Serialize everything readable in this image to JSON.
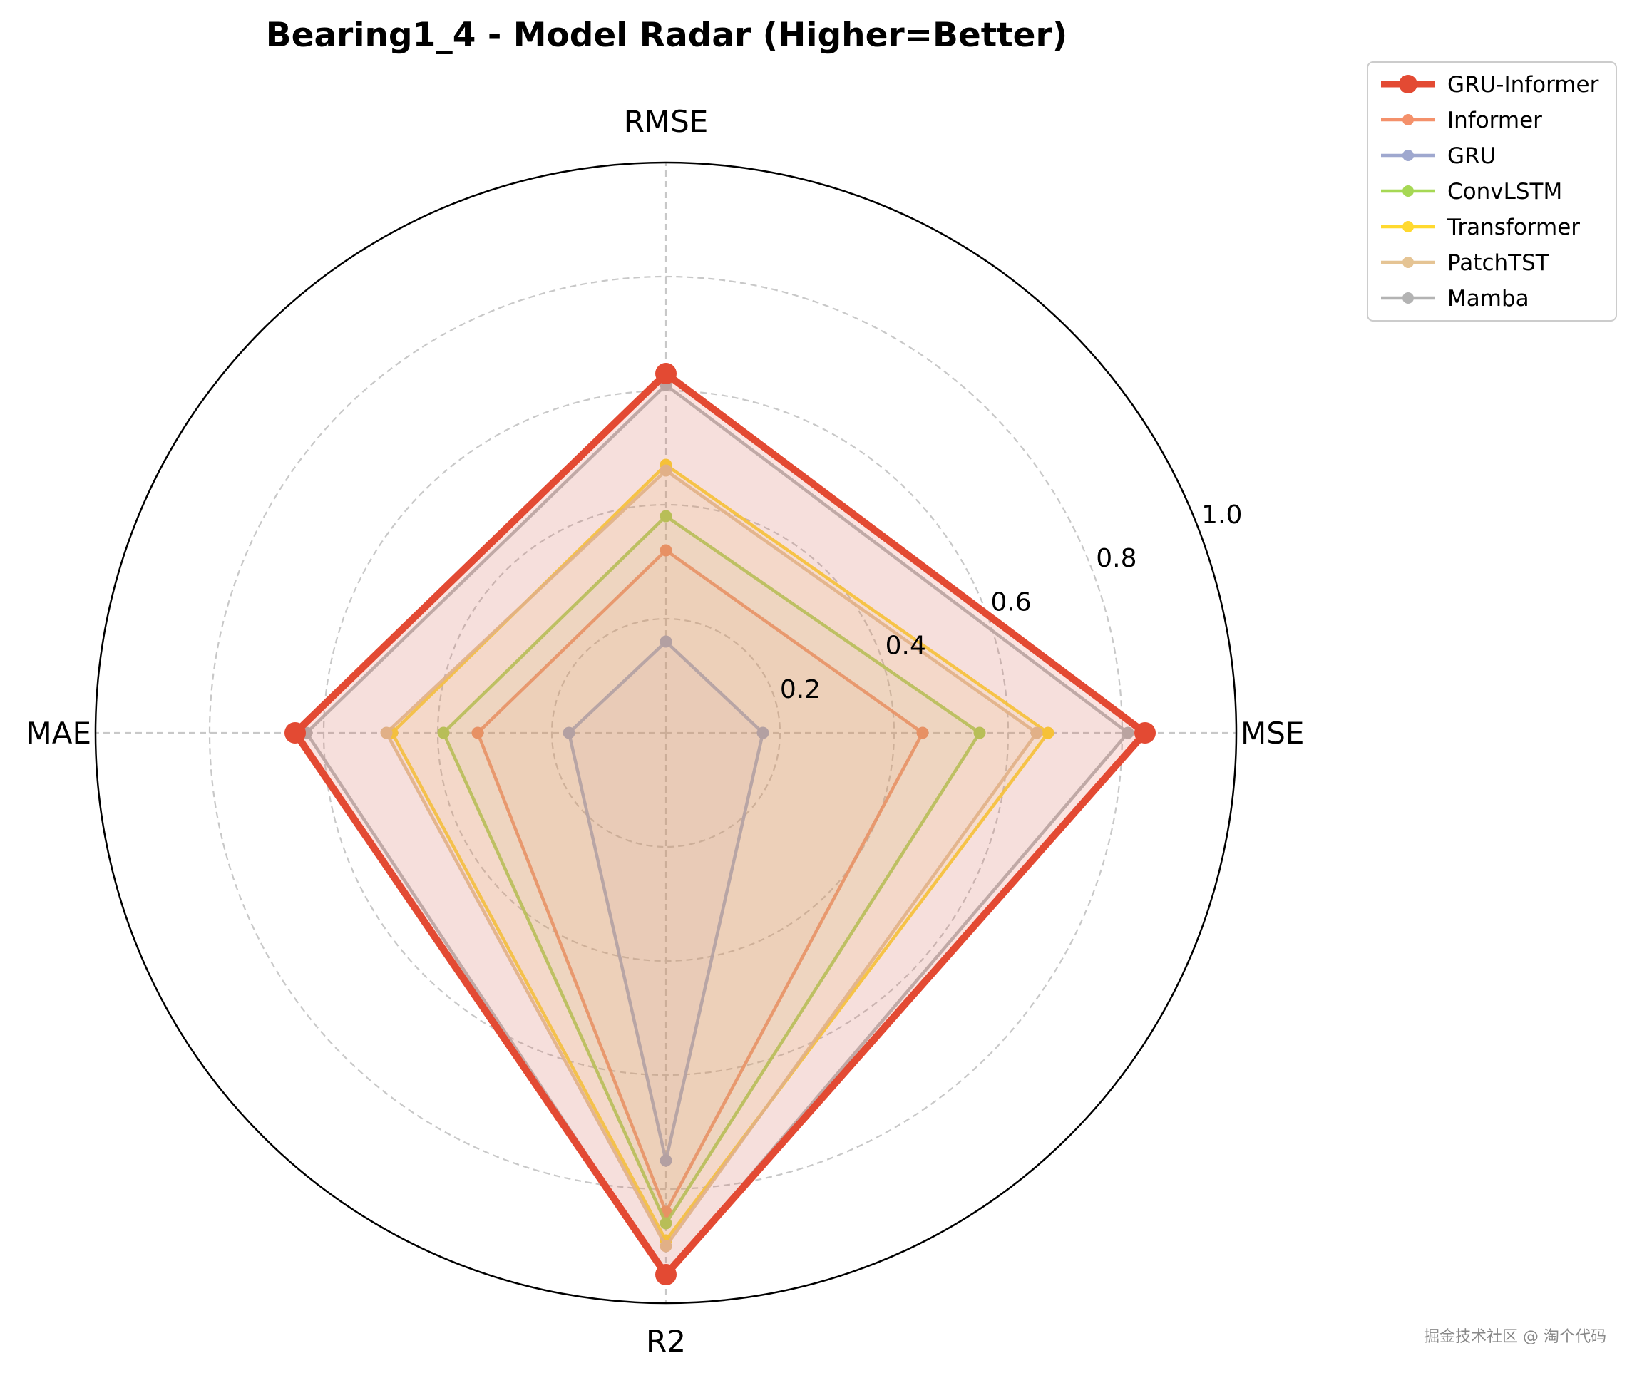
{
  "chart_data": {
    "type": "radar",
    "title": "Bearing1_4 - Model Radar (Higher=Better)",
    "axes": [
      "RMSE",
      "MSE",
      "R2",
      "MAE"
    ],
    "radial_range": [
      0,
      1.0
    ],
    "radial_ticks": [
      "0.2",
      "0.4",
      "0.6",
      "0.8",
      "1.0"
    ],
    "grid": true,
    "legend_position": "top-right outside",
    "series": [
      {
        "name": "GRU-Informer",
        "values": [
          0.63,
          0.84,
          0.95,
          0.65
        ],
        "color": "#e34a33",
        "highlight": true
      },
      {
        "name": "Informer",
        "values": [
          0.32,
          0.45,
          0.84,
          0.33
        ],
        "color": "#f4916b"
      },
      {
        "name": "GRU",
        "values": [
          0.16,
          0.17,
          0.75,
          0.17
        ],
        "color": "#9fa8cf"
      },
      {
        "name": "ConvLSTM",
        "values": [
          0.38,
          0.55,
          0.86,
          0.39
        ],
        "color": "#a6d854"
      },
      {
        "name": "Transformer",
        "values": [
          0.47,
          0.67,
          0.89,
          0.48
        ],
        "color": "#ffd92f"
      },
      {
        "name": "PatchTST",
        "values": [
          0.46,
          0.65,
          0.9,
          0.49
        ],
        "color": "#e5c494"
      },
      {
        "name": "Mamba",
        "values": [
          0.61,
          0.81,
          0.95,
          0.63
        ],
        "color": "#b3b3b3"
      }
    ]
  },
  "watermark": "掘金技术社区 @ 淘个代码"
}
